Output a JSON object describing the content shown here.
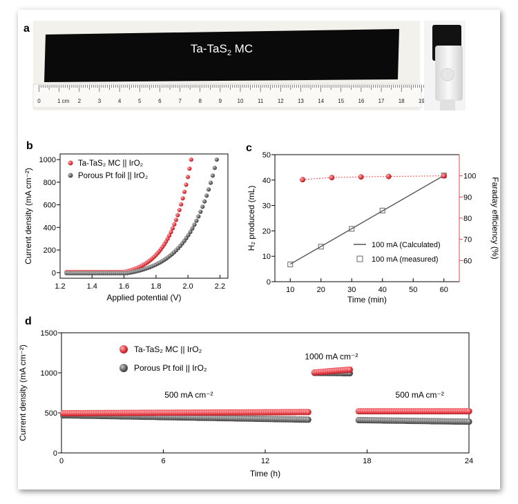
{
  "panels": {
    "a": {
      "letter": "a",
      "electrode_label": "Ta-TaS",
      "electrode_label_sub": "2",
      "electrode_label_tail": " MC",
      "ruler_numbers": [
        "0",
        "1 cm",
        "2",
        "3",
        "4",
        "5",
        "6",
        "7",
        "8",
        "9",
        "10",
        "11",
        "12",
        "13",
        "14",
        "15",
        "16",
        "17",
        "18",
        "19"
      ]
    },
    "b": {
      "letter": "b"
    },
    "c": {
      "letter": "c"
    },
    "d": {
      "letter": "d"
    }
  },
  "chart_data": [
    {
      "id": "b",
      "type": "scatter",
      "xlabel": "Applied potential (V)",
      "ylabel": "Current density (mA cm⁻²)",
      "xlim": [
        1.2,
        2.25
      ],
      "ylim": [
        -50,
        1050
      ],
      "xticks": [
        1.2,
        1.4,
        1.6,
        1.8,
        2.0,
        2.2
      ],
      "xtick_labels": [
        "1.2",
        "1.4",
        "1.6",
        "1.8",
        "2.0",
        "2.2"
      ],
      "yticks": [
        0,
        200,
        400,
        600,
        800,
        1000
      ],
      "ytick_labels": [
        "0",
        "200",
        "400",
        "600",
        "800",
        "1000"
      ],
      "legend": {
        "placement": "top-left",
        "entries": [
          {
            "text": "Ta-TaS₂ MC || IrO₂",
            "color": "#e8434a"
          },
          {
            "text": "Porous Pt foil || IrO₂",
            "color": "#6d6d6d"
          }
        ]
      },
      "series": [
        {
          "name": "Ta-TaS₂ MC || IrO₂",
          "color": "#e8434a",
          "v_start": 1.24,
          "onset": 1.6,
          "v_end": 2.02,
          "j_end": 1000,
          "j_base": 5
        },
        {
          "name": "Porous Pt foil || IrO₂",
          "color": "#6d6d6d",
          "v_start": 1.24,
          "onset": 1.62,
          "v_end": 2.18,
          "j_end": 1000,
          "j_base": -5
        }
      ]
    },
    {
      "id": "c",
      "type": "scatter",
      "xlabel": "Time (min)",
      "ylabel": "H₂ produced (mL)",
      "y2label": "Faraday efficiency (%)",
      "xlim": [
        5,
        65
      ],
      "ylim": [
        0,
        50
      ],
      "y2lim": [
        50,
        110
      ],
      "xticks": [
        10,
        20,
        30,
        40,
        50,
        60
      ],
      "xtick_labels": [
        "10",
        "20",
        "30",
        "40",
        "50",
        "60"
      ],
      "yticks": [
        0,
        10,
        20,
        30,
        40,
        50
      ],
      "ytick_labels": [
        "0",
        "10",
        "20",
        "30",
        "40",
        "50"
      ],
      "y2ticks": [
        60,
        70,
        80,
        90,
        100
      ],
      "y2tick_labels": [
        "60",
        "70",
        "80",
        "90",
        "100"
      ],
      "legend": {
        "placement": "bottom-right",
        "entries": [
          {
            "text": "100 mA (Calculated)",
            "symbol": "line"
          },
          {
            "text": "100 mA (measured)",
            "symbol": "square"
          }
        ]
      },
      "calculated": {
        "x": [
          10,
          60
        ],
        "y": [
          6.9,
          41.8
        ]
      },
      "measured": {
        "x": [
          10,
          20,
          30,
          40,
          60
        ],
        "y": [
          6.8,
          13.8,
          20.8,
          28.0,
          41.8
        ]
      },
      "faraday": {
        "x": [
          14,
          23.5,
          33,
          42,
          60
        ],
        "y": [
          98.2,
          99.2,
          99.5,
          99.7,
          100
        ]
      },
      "accent_color": "#e8434a"
    },
    {
      "id": "d",
      "type": "scatter",
      "xlabel": "Time (h)",
      "ylabel": "Current density (mA cm⁻²)",
      "xlim": [
        0,
        24
      ],
      "ylim": [
        0,
        1500
      ],
      "xticks": [
        0,
        6,
        12,
        18,
        24
      ],
      "xtick_labels": [
        "0",
        "6",
        "12",
        "18",
        "24"
      ],
      "yticks": [
        0,
        500,
        1000,
        1500
      ],
      "ytick_labels": [
        "0",
        "500",
        "1000",
        "1500"
      ],
      "legend": {
        "placement": "top-left",
        "entries": [
          {
            "text": "Ta-TaS₂ MC || IrO₂",
            "color": "#e8434a"
          },
          {
            "text": "Porous Pt foil || IrO₂",
            "color": "#6d6d6d"
          }
        ]
      },
      "annotations": [
        {
          "text": "500 mA cm⁻²",
          "x": 7.5,
          "y": 690
        },
        {
          "text": "1000 mA cm⁻²",
          "x": 15.9,
          "y": 1170
        },
        {
          "text": "500 mA cm⁻²",
          "x": 21.1,
          "y": 690
        }
      ],
      "series": [
        {
          "name": "Ta-TaS₂ MC || IrO₂",
          "color": "#e8434a",
          "segments": [
            {
              "t0": 0.1,
              "t1": 14.6,
              "j0": 495,
              "j1": 510
            },
            {
              "t0": 14.9,
              "t1": 17.0,
              "j0": 1005,
              "j1": 1040
            },
            {
              "t0": 17.5,
              "t1": 24.0,
              "j0": 520,
              "j1": 520
            }
          ]
        },
        {
          "name": "Porous Pt foil || IrO₂",
          "color": "#6d6d6d",
          "segments": [
            {
              "t0": 0.1,
              "t1": 14.6,
              "j0": 470,
              "j1": 415
            },
            {
              "t0": 14.9,
              "t1": 17.0,
              "j0": 1000,
              "j1": 995
            },
            {
              "t0": 17.5,
              "t1": 24.0,
              "j0": 410,
              "j1": 390
            }
          ]
        }
      ]
    }
  ]
}
